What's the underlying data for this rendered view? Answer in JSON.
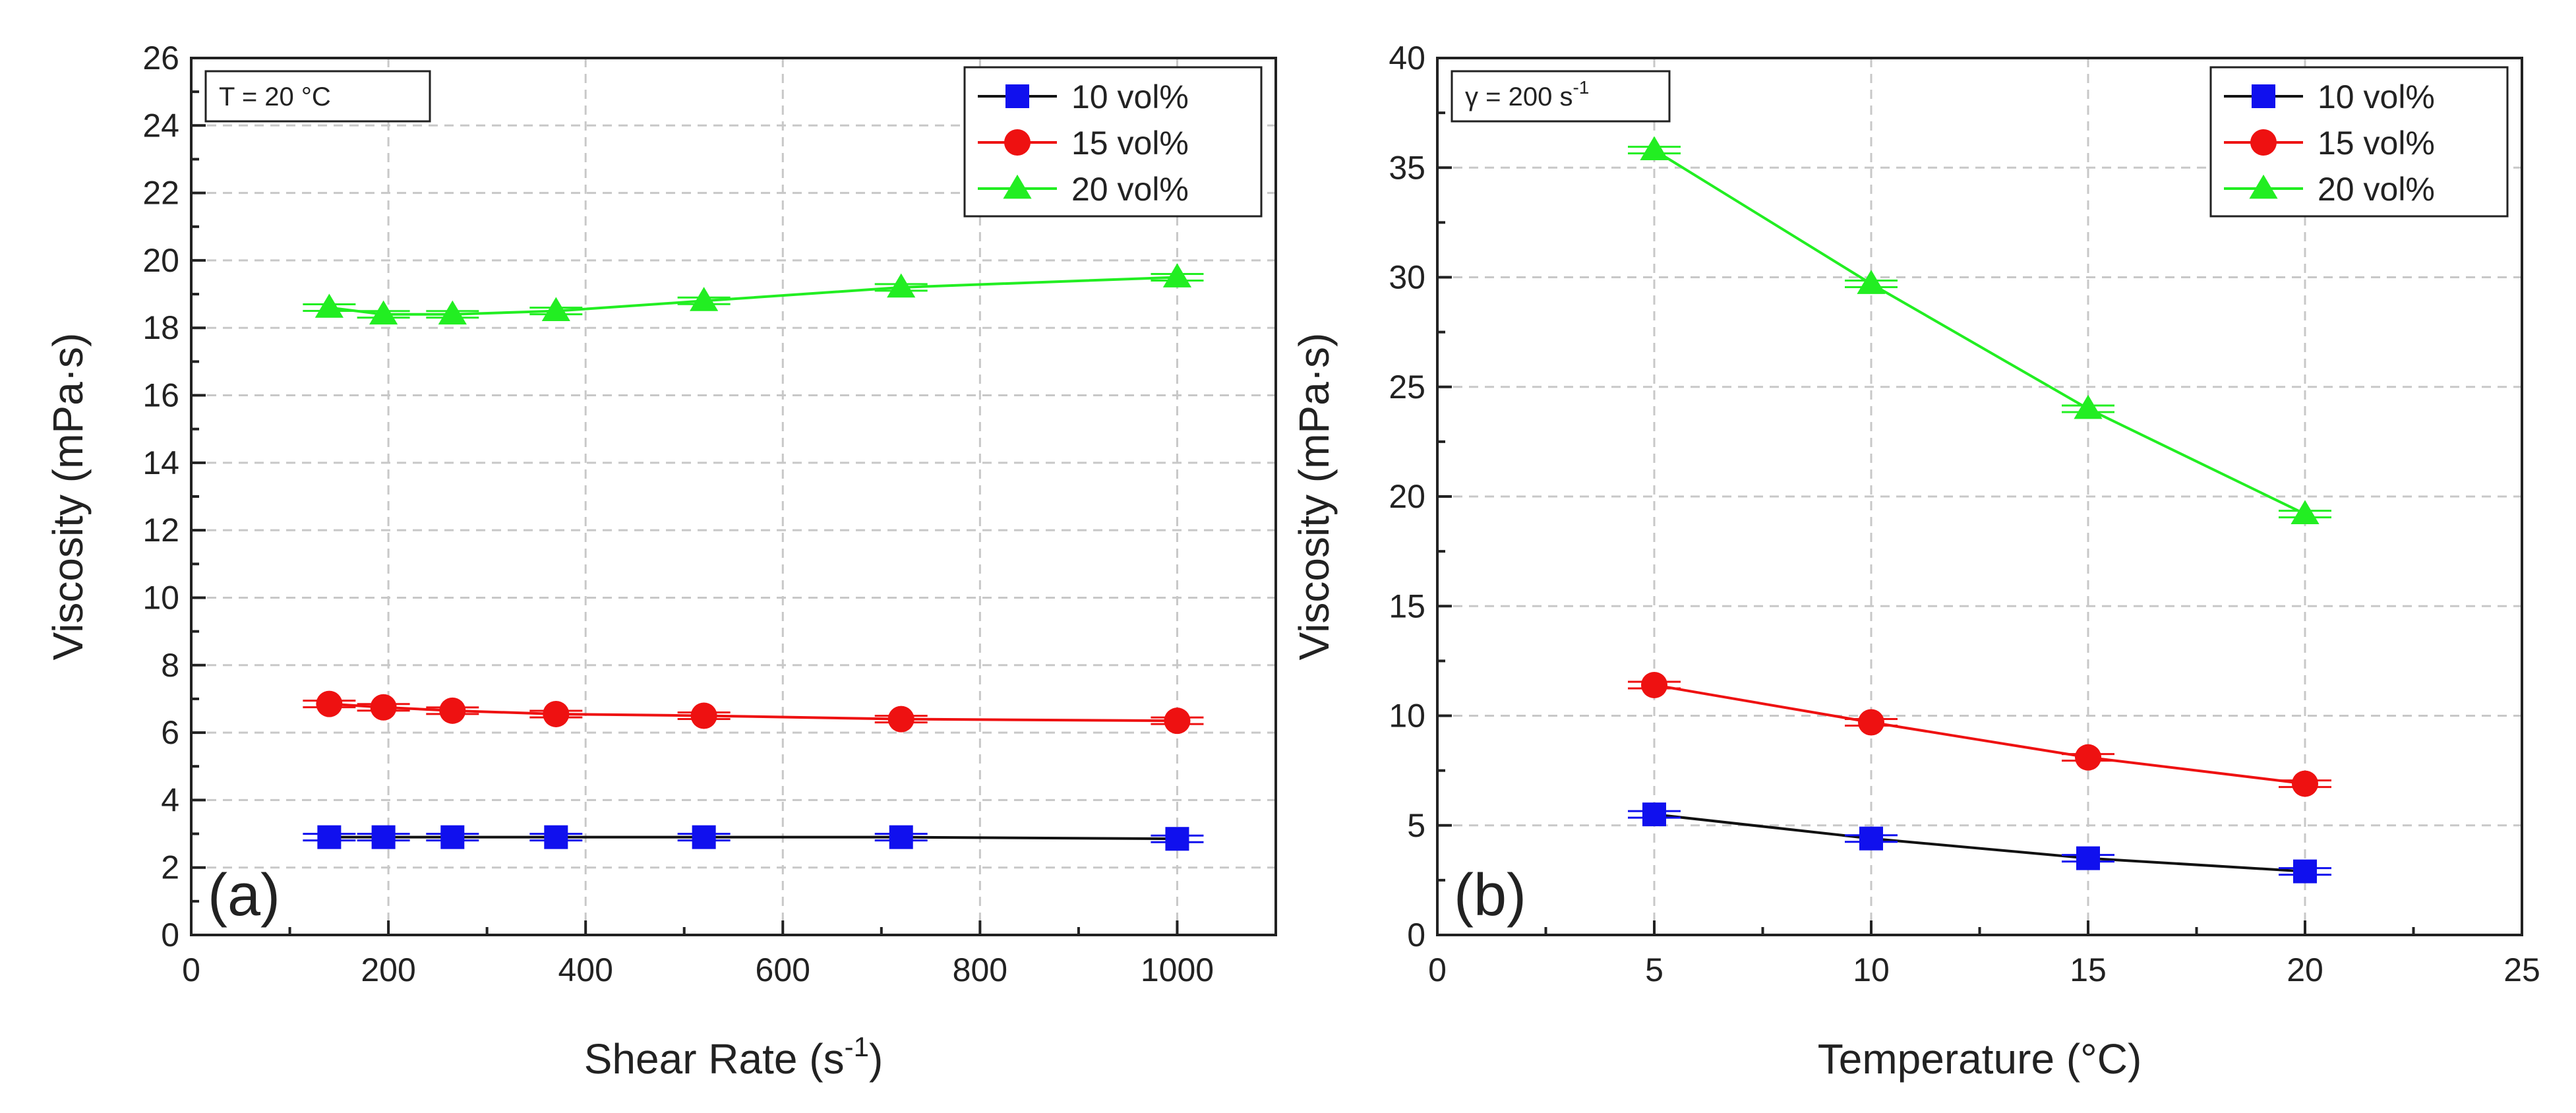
{
  "chart_data": [
    {
      "type": "line",
      "panel_label": "(a)",
      "annotation": "T = 20 °C",
      "xlabel": "Shear Rate (s",
      "xlabel_sup": "-1",
      "xlabel_end": ")",
      "ylabel": "Viscosity (mPa·s)",
      "xlim": [
        0,
        1100
      ],
      "ylim": [
        0,
        26
      ],
      "xticks": [
        0,
        200,
        400,
        600,
        800,
        1000
      ],
      "yticks": [
        0,
        2,
        4,
        6,
        8,
        10,
        12,
        14,
        16,
        18,
        20,
        22,
        24,
        26
      ],
      "grid": true,
      "legend_position": "top-right",
      "series": [
        {
          "name": "10 vol%",
          "color": "#1010ee",
          "line_color": "#111111",
          "marker": "square",
          "x": [
            140,
            195,
            265,
            370,
            520,
            720,
            1000
          ],
          "y": [
            2.9,
            2.9,
            2.9,
            2.9,
            2.9,
            2.9,
            2.85
          ]
        },
        {
          "name": "15 vol%",
          "color": "#ee1111",
          "line_color": "#ee1111",
          "marker": "circle",
          "x": [
            140,
            195,
            265,
            370,
            520,
            720,
            1000
          ],
          "y": [
            6.85,
            6.75,
            6.65,
            6.55,
            6.5,
            6.4,
            6.35
          ]
        },
        {
          "name": "20 vol%",
          "color": "#22ee22",
          "line_color": "#22ee22",
          "marker": "triangle",
          "x": [
            140,
            195,
            265,
            370,
            520,
            720,
            1000
          ],
          "y": [
            18.6,
            18.4,
            18.4,
            18.5,
            18.8,
            19.2,
            19.5
          ]
        }
      ]
    },
    {
      "type": "line",
      "panel_label": "(b)",
      "annotation": "γ = 200 s",
      "annotation_sup": "-1",
      "xlabel": "Temperature (°C)",
      "ylabel": "Viscosity (mPa·s)",
      "xlim": [
        0,
        25
      ],
      "ylim": [
        0,
        40
      ],
      "xticks": [
        0,
        5,
        10,
        15,
        20,
        25
      ],
      "yticks": [
        0,
        5,
        10,
        15,
        20,
        25,
        30,
        35,
        40
      ],
      "grid": true,
      "legend_position": "top-right",
      "series": [
        {
          "name": "10 vol%",
          "color": "#1010ee",
          "line_color": "#111111",
          "marker": "square",
          "x": [
            5,
            10,
            15,
            20
          ],
          "y": [
            5.5,
            4.4,
            3.5,
            2.9
          ]
        },
        {
          "name": "15 vol%",
          "color": "#ee1111",
          "line_color": "#ee1111",
          "marker": "circle",
          "x": [
            5,
            10,
            15,
            20
          ],
          "y": [
            11.4,
            9.7,
            8.1,
            6.9
          ]
        },
        {
          "name": "20 vol%",
          "color": "#22ee22",
          "line_color": "#22ee22",
          "marker": "triangle",
          "x": [
            5,
            10,
            15,
            20
          ],
          "y": [
            35.8,
            29.7,
            24.0,
            19.2
          ]
        }
      ]
    }
  ]
}
